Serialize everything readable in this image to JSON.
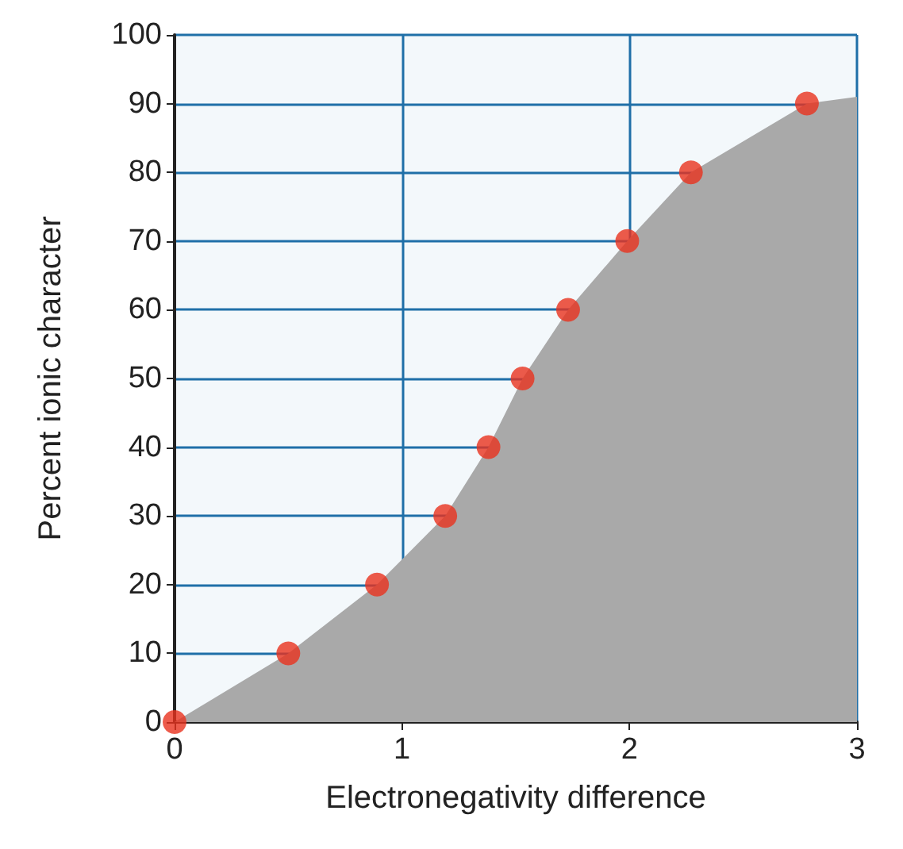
{
  "chart_data": {
    "type": "scatter",
    "xlabel": "Electronegativity difference",
    "ylabel": "Percent ionic character",
    "xlim": [
      0,
      3
    ],
    "xticks": [
      0,
      1,
      2,
      3
    ],
    "ylim": [
      0,
      100
    ],
    "yticks": [
      0,
      10,
      20,
      30,
      40,
      50,
      60,
      70,
      80,
      90,
      100
    ],
    "grid": true,
    "marker": "circle",
    "series": [
      {
        "type": "area",
        "marker": "none",
        "color": "#a9a9a9",
        "x": [
          0,
          0.5,
          0.89,
          1.19,
          1.38,
          1.53,
          1.73,
          1.99,
          2.27,
          2.78,
          3
        ],
        "values": [
          0,
          10,
          20,
          30,
          40,
          50,
          60,
          70,
          80,
          90,
          91
        ]
      },
      {
        "color": "#e8321e",
        "x": [
          0,
          0.5,
          0.89,
          1.19,
          1.38,
          1.53,
          1.73,
          1.99,
          2.27,
          2.78
        ],
        "values": [
          0,
          10,
          20,
          30,
          40,
          50,
          60,
          70,
          80,
          90
        ]
      }
    ]
  }
}
